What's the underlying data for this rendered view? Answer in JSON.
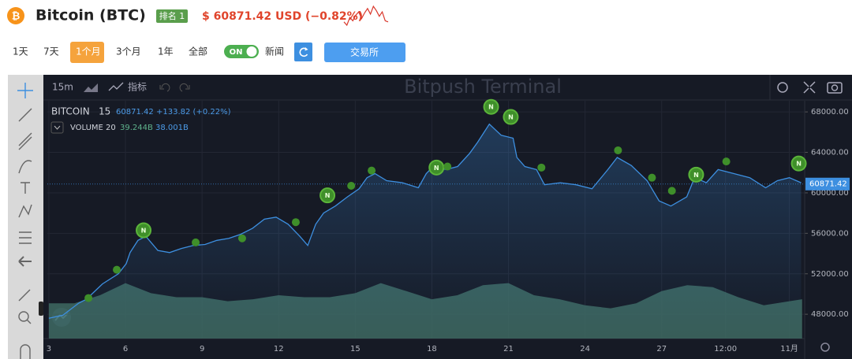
{
  "header": {
    "coin": "Bitcoin (BTC)",
    "rank": "排名 1",
    "price": "$ 60871.42 USD (−0.82%)",
    "sparkline": [
      60900,
      60600,
      61300,
      61000,
      61500,
      61800,
      61200,
      61700,
      62100,
      61600,
      62300,
      61900,
      61400,
      61800,
      61000,
      60900
    ]
  },
  "toolbar": {
    "ranges": [
      "1天",
      "7天",
      "1个月",
      "3个月",
      "1年",
      "全部"
    ],
    "active_range": 2,
    "toggle": "ON",
    "news": "新闻",
    "exchange": "交易所"
  },
  "chart_toolbar": {
    "interval": "15m",
    "indicators": "指标",
    "watermark": "Bitpush Terminal"
  },
  "chart_data": {
    "type": "line",
    "legend": {
      "symbol": "BITCOIN",
      "interval": "15",
      "change": "+133.82 (+0.22%)",
      "volume_label": "VOLUME 20",
      "volume_1": "39.244B",
      "volume_2": "38.001B"
    },
    "last_price": 60871.42,
    "x": [
      3.0,
      3.55,
      4.17,
      4.48,
      5.1,
      5.72,
      6.03,
      6.18,
      6.49,
      6.8,
      7.27,
      7.73,
      8.19,
      8.66,
      9.12,
      9.58,
      10.05,
      10.51,
      10.98,
      11.44,
      11.9,
      12.37,
      12.83,
      13.14,
      13.45,
      13.76,
      14.22,
      14.69,
      15.15,
      15.46,
      15.77,
      16.23,
      16.85,
      17.47,
      17.78,
      18.09,
      18.55,
      19.01,
      19.48,
      19.79,
      20.25,
      20.71,
      21.18,
      21.33,
      21.64,
      22.1,
      22.41,
      23.03,
      23.65,
      24.27,
      24.89,
      25.26,
      25.81,
      26.43,
      26.9,
      27.36,
      27.98,
      28.29,
      28.75,
      29.21,
      29.83,
      30.45,
      31.07,
      31.53,
      32.0,
      32.46
    ],
    "values": [
      47600,
      47900,
      49100,
      49500,
      51000,
      52000,
      53000,
      54100,
      55300,
      55700,
      54300,
      54100,
      54500,
      54800,
      54900,
      55300,
      55500,
      55900,
      56500,
      57400,
      57600,
      56900,
      55700,
      54800,
      56900,
      58000,
      58700,
      59600,
      60400,
      61500,
      61900,
      61200,
      61000,
      60500,
      61900,
      62700,
      62300,
      62600,
      63900,
      65000,
      66800,
      65700,
      65400,
      63500,
      62600,
      62300,
      60800,
      61000,
      60800,
      60400,
      62300,
      63500,
      62700,
      61200,
      59200,
      58700,
      59600,
      61500,
      61000,
      62300,
      61900,
      61500,
      60500,
      61200,
      61500,
      61000
    ],
    "color": "#3d8fe0",
    "volume": {
      "x": [
        3,
        4,
        5,
        6,
        7,
        8,
        9,
        10,
        11,
        12,
        13,
        14,
        15,
        16,
        17,
        18,
        19,
        20,
        21,
        22,
        23,
        24,
        25,
        26,
        27,
        28,
        29,
        30,
        31,
        32,
        32.5
      ],
      "values": [
        35,
        35,
        43,
        55,
        45,
        41,
        41,
        37,
        39,
        43,
        41,
        41,
        45,
        55,
        47,
        39,
        43,
        53,
        55,
        43,
        39,
        33,
        30,
        35,
        47,
        53,
        51,
        41,
        33,
        37,
        39
      ],
      "color": "#3e6a62"
    },
    "news": {
      "label": "N",
      "color": "#3f8f2a",
      "x": [
        4.55,
        5.66,
        6.71,
        8.75,
        10.57,
        12.67,
        13.91,
        14.84,
        15.64,
        18.18,
        18.61,
        20.32,
        21.09,
        22.29,
        25.29,
        26.62,
        27.4,
        28.35,
        29.53,
        32.37
      ],
      "values": [
        49600,
        52400,
        56300,
        55100,
        55500,
        57100,
        59750,
        60700,
        62200,
        62500,
        62600,
        68500,
        67500,
        62500,
        64200,
        61500,
        60200,
        61800,
        63100,
        62900
      ],
      "sizes": [
        "small",
        "small",
        "large",
        "small",
        "small",
        "small",
        "large",
        "small",
        "small",
        "large",
        "small",
        "large",
        "large",
        "small",
        "small",
        "small",
        "small",
        "large",
        "small",
        "large"
      ]
    },
    "xlim": [
      2.94,
      32.6
    ],
    "ylim": [
      45600,
      69100
    ],
    "xticks": [
      3,
      6,
      9,
      12,
      15,
      18,
      21,
      24,
      27,
      {
        "value": 29.5,
        "label": "12:00"
      },
      {
        "value": 32,
        "label": "11月"
      }
    ],
    "yticks": [
      {
        "value": 48000,
        "label": "48000.00"
      },
      {
        "value": 52000,
        "label": "52000.00"
      },
      {
        "value": 56000,
        "label": "56000.00"
      },
      {
        "value": 60000,
        "label": "60000.00"
      },
      {
        "value": 64000,
        "label": "64000.00"
      },
      {
        "value": 68000,
        "label": "68000.00"
      }
    ],
    "grid": true
  }
}
